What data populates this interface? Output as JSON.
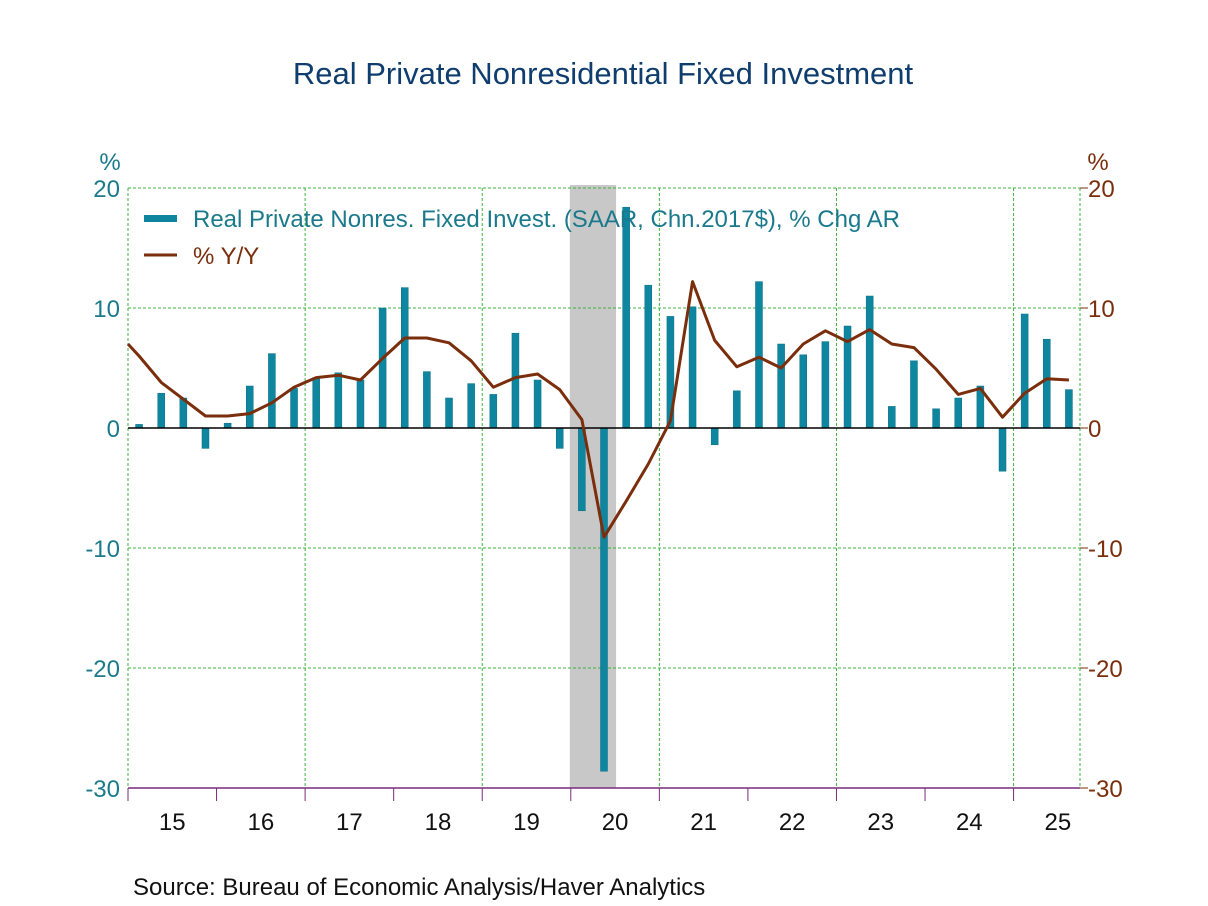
{
  "chart_data": {
    "type": "bar",
    "title": "Real Private Nonresidential Fixed Investment",
    "source": "Source:  Bureau of Economic Analysis/Haver Analytics",
    "left_axis": {
      "unit_label": "%",
      "ticks": [
        20,
        10,
        0,
        -10,
        -20,
        -30
      ],
      "tick_labels": [
        "20",
        "10",
        "0",
        "-10",
        "-20",
        "-30"
      ],
      "range": [
        -30,
        20
      ],
      "color": "#1a7a8c"
    },
    "right_axis": {
      "unit_label": "%",
      "ticks": [
        20,
        10,
        0,
        -10,
        -20,
        -30
      ],
      "tick_labels": [
        "20",
        "10",
        "0",
        "-10",
        "-20",
        "-30"
      ],
      "range": [
        -30,
        20
      ],
      "color": "#7a2e0c"
    },
    "x_axis": {
      "tick_labels": [
        "15",
        "16",
        "17",
        "18",
        "19",
        "20",
        "21",
        "22",
        "23",
        "24",
        "25"
      ],
      "start": "2015Q1",
      "end": "2025Q3",
      "frequency": "quarterly"
    },
    "grid": true,
    "legend_placement": "top-left",
    "recession": {
      "start": "2020Q1",
      "end": "2020Q2",
      "color": "#c8c8c8"
    },
    "categories": [
      "2015Q1",
      "2015Q2",
      "2015Q3",
      "2015Q4",
      "2016Q1",
      "2016Q2",
      "2016Q3",
      "2016Q4",
      "2017Q1",
      "2017Q2",
      "2017Q3",
      "2017Q4",
      "2018Q1",
      "2018Q2",
      "2018Q3",
      "2018Q4",
      "2019Q1",
      "2019Q2",
      "2019Q3",
      "2019Q4",
      "2020Q1",
      "2020Q2",
      "2020Q3",
      "2020Q4",
      "2021Q1",
      "2021Q2",
      "2021Q3",
      "2021Q4",
      "2022Q1",
      "2022Q2",
      "2022Q3",
      "2022Q4",
      "2023Q1",
      "2023Q2",
      "2023Q3",
      "2023Q4",
      "2024Q1",
      "2024Q2",
      "2024Q3",
      "2024Q4",
      "2025Q1",
      "2025Q2",
      "2025Q3"
    ],
    "series": [
      {
        "name": "Real Private Nonres. Fixed Invest. (SAAR, Chn.2017$), % Chg AR",
        "type": "bar",
        "axis": "left",
        "color": "#0e86a0",
        "values": [
          0.3,
          2.9,
          2.5,
          -1.7,
          0.4,
          3.5,
          6.2,
          3.3,
          4.2,
          4.6,
          4.0,
          10.0,
          11.7,
          4.7,
          2.5,
          3.7,
          2.8,
          7.9,
          4.0,
          -1.7,
          -6.9,
          -28.6,
          18.4,
          11.9,
          9.3,
          10.1,
          -1.4,
          3.1,
          12.2,
          7.0,
          6.1,
          7.2,
          8.5,
          11.0,
          1.8,
          5.6,
          1.6,
          2.5,
          3.5,
          -3.6,
          9.5,
          7.4,
          3.2
        ]
      },
      {
        "name": "% Y/Y",
        "type": "line",
        "axis": "right",
        "color": "#7a2e0c",
        "values": [
          6.0,
          3.8,
          2.4,
          1.0,
          1.0,
          1.2,
          2.1,
          3.4,
          4.2,
          4.4,
          4.0,
          5.8,
          7.5,
          7.5,
          7.1,
          5.6,
          3.4,
          4.2,
          4.5,
          3.2,
          0.7,
          -9.1,
          -6.1,
          -3.0,
          0.6,
          12.2,
          7.3,
          5.1,
          5.9,
          5.0,
          7.0,
          8.1,
          7.2,
          8.2,
          7.0,
          6.7,
          4.9,
          2.8,
          3.3,
          0.9,
          2.9,
          4.1,
          4.0
        ],
        "start_value": 7.0
      }
    ]
  }
}
